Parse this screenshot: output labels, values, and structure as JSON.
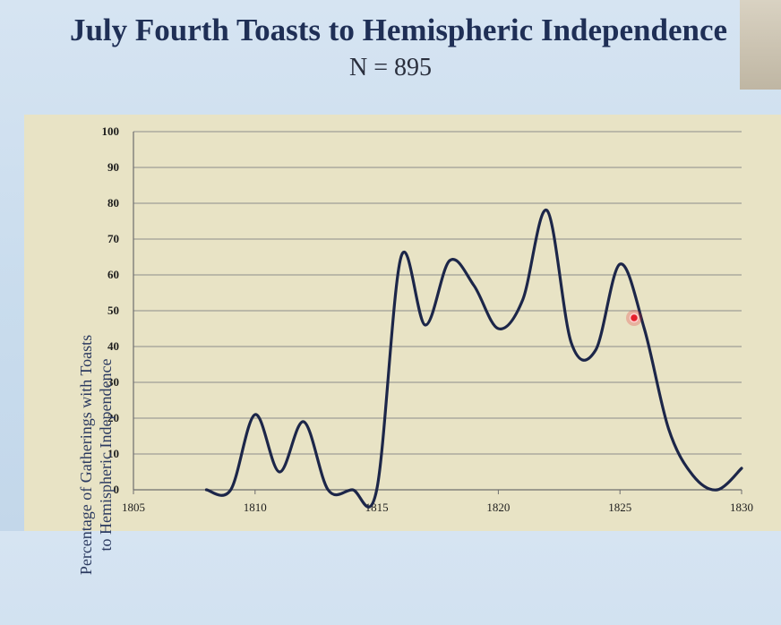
{
  "title": "July Fourth Toasts to Hemispheric Independence",
  "subtitle": "N = 895",
  "chart_data": {
    "type": "line",
    "title": "July Fourth Toasts to Hemispheric Independence",
    "subtitle": "N = 895",
    "ylabel": "Percentage of Gatherings with Toasts to Hemispheric Independence",
    "ylabel_lines": [
      "Percentage of Gatherings with Toasts",
      "to Hemispheric Independence"
    ],
    "xlabel": "",
    "xlim": [
      1805,
      1830
    ],
    "ylim": [
      0,
      100
    ],
    "x_ticks": [
      1805,
      1810,
      1815,
      1820,
      1825,
      1830
    ],
    "y_ticks": [
      0,
      10,
      20,
      30,
      40,
      50,
      60,
      70,
      80,
      90,
      100
    ],
    "grid": true,
    "series": [
      {
        "color": "#1c2649",
        "points": [
          [
            1808,
            0
          ],
          [
            1809,
            0
          ],
          [
            1810,
            21
          ],
          [
            1811,
            5
          ],
          [
            1812,
            19
          ],
          [
            1813,
            0
          ],
          [
            1814,
            0
          ],
          [
            1815,
            0
          ],
          [
            1816,
            65
          ],
          [
            1817,
            46
          ],
          [
            1818,
            64
          ],
          [
            1819,
            57
          ],
          [
            1820,
            45
          ],
          [
            1821,
            53
          ],
          [
            1822,
            78
          ],
          [
            1823,
            41
          ],
          [
            1824,
            39
          ],
          [
            1825,
            63
          ],
          [
            1826,
            45
          ],
          [
            1827,
            17
          ],
          [
            1828,
            4
          ],
          [
            1829,
            0
          ],
          [
            1830,
            6
          ]
        ]
      }
    ]
  },
  "colors": {
    "background": "#c9dced",
    "plot_background": "#e8e3c5",
    "title": "#1f2f56",
    "line": "#1c2649",
    "grid": "#8c8c8c",
    "pointer": "#e5202c"
  },
  "icons": {
    "pointer": "laser-pointer-icon"
  }
}
